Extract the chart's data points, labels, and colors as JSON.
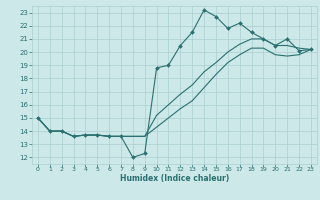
{
  "xlabel": "Humidex (Indice chaleur)",
  "bg_color": "#cce8e8",
  "grid_color": "#aacfcf",
  "line_color": "#2a7070",
  "xlim": [
    -0.5,
    23.5
  ],
  "ylim": [
    11.5,
    23.5
  ],
  "yticks": [
    12,
    13,
    14,
    15,
    16,
    17,
    18,
    19,
    20,
    21,
    22,
    23
  ],
  "xticks": [
    0,
    1,
    2,
    3,
    4,
    5,
    6,
    7,
    8,
    9,
    10,
    11,
    12,
    13,
    14,
    15,
    16,
    17,
    18,
    19,
    20,
    21,
    22,
    23
  ],
  "curve1_x": [
    0,
    1,
    2,
    3,
    4,
    5,
    6,
    7,
    8,
    9,
    10,
    11,
    12,
    13,
    14,
    15,
    16,
    17,
    18,
    19,
    20,
    21,
    22,
    23
  ],
  "curve1_y": [
    15.0,
    14.0,
    14.0,
    13.6,
    13.7,
    13.7,
    13.6,
    13.6,
    12.0,
    12.3,
    18.8,
    19.0,
    20.5,
    21.5,
    23.2,
    22.7,
    21.8,
    22.2,
    21.5,
    21.0,
    20.5,
    21.0,
    20.1,
    20.2
  ],
  "curve2_x": [
    0,
    1,
    2,
    3,
    4,
    5,
    6,
    7,
    8,
    9,
    10,
    11,
    12,
    13,
    14,
    15,
    16,
    17,
    18,
    19,
    20,
    21,
    22,
    23
  ],
  "curve2_y": [
    15.0,
    14.0,
    14.0,
    13.6,
    13.7,
    13.7,
    13.6,
    13.6,
    13.6,
    13.6,
    15.2,
    16.0,
    16.8,
    17.5,
    18.5,
    19.2,
    20.0,
    20.6,
    21.0,
    21.0,
    20.5,
    20.5,
    20.3,
    20.2
  ],
  "curve3_x": [
    0,
    1,
    2,
    3,
    4,
    5,
    6,
    7,
    8,
    9,
    10,
    11,
    12,
    13,
    14,
    15,
    16,
    17,
    18,
    19,
    20,
    21,
    22,
    23
  ],
  "curve3_y": [
    15.0,
    14.0,
    14.0,
    13.6,
    13.7,
    13.7,
    13.6,
    13.6,
    13.6,
    13.6,
    14.3,
    15.0,
    15.7,
    16.3,
    17.3,
    18.3,
    19.2,
    19.8,
    20.3,
    20.3,
    19.8,
    19.7,
    19.8,
    20.2
  ]
}
